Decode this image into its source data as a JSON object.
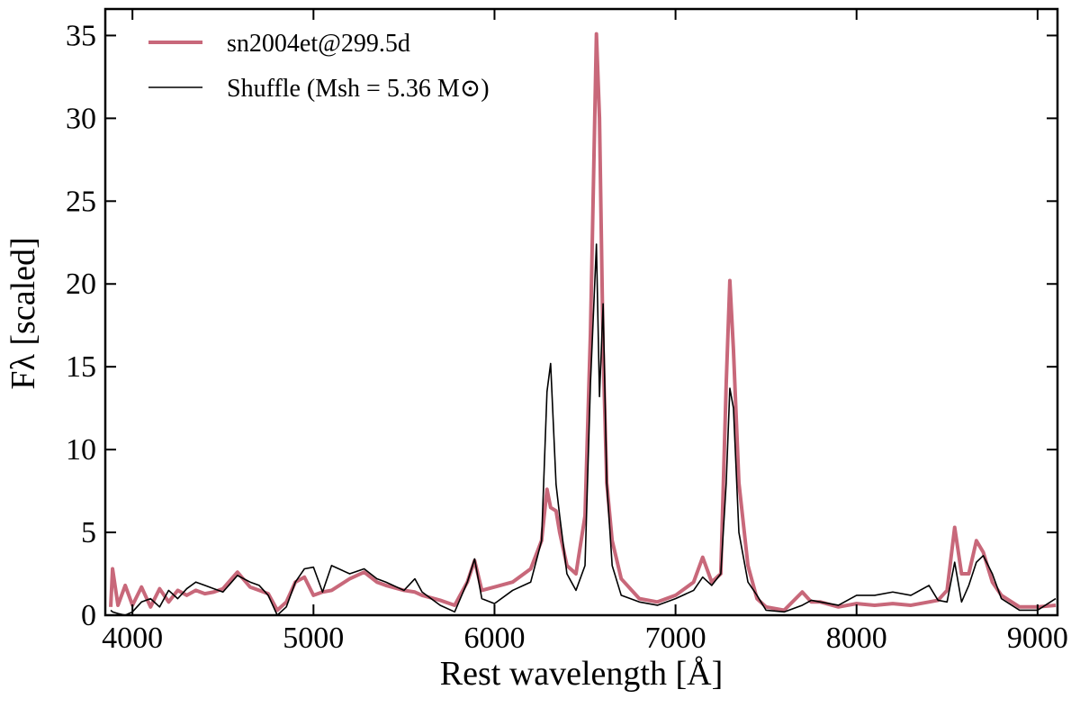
{
  "chart_data": {
    "type": "line",
    "xlabel": "Rest wavelength [Å]",
    "ylabel": "Fλ [scaled]",
    "xlim": [
      3850,
      9110
    ],
    "ylim": [
      0,
      36.6
    ],
    "xticks": [
      4000,
      5000,
      6000,
      7000,
      8000,
      9000
    ],
    "yticks": [
      0,
      5,
      10,
      15,
      20,
      25,
      30,
      35
    ],
    "legend": "upper left",
    "x": [
      3880,
      3890,
      3920,
      3960,
      4000,
      4050,
      4100,
      4150,
      4200,
      4250,
      4300,
      4350,
      4400,
      4450,
      4500,
      4580,
      4650,
      4700,
      4750,
      4800,
      4850,
      4900,
      4950,
      5000,
      5050,
      5100,
      5200,
      5280,
      5350,
      5400,
      5500,
      5560,
      5600,
      5700,
      5780,
      5850,
      5890,
      5930,
      6000,
      6100,
      6200,
      6260,
      6290,
      6310,
      6340,
      6360,
      6400,
      6450,
      6500,
      6530,
      6563,
      6580,
      6600,
      6620,
      6650,
      6700,
      6800,
      6900,
      7000,
      7100,
      7150,
      7200,
      7250,
      7280,
      7300,
      7320,
      7350,
      7400,
      7450,
      7500,
      7600,
      7700,
      7750,
      7800,
      7900,
      8000,
      8100,
      8200,
      8300,
      8400,
      8450,
      8500,
      8542,
      8580,
      8620,
      8662,
      8700,
      8750,
      8800,
      8900,
      9000,
      9100
    ],
    "series": [
      {
        "name": "sn2004et@299.5d",
        "color": "#c8687a",
        "width": 4,
        "values": [
          0.5,
          2.8,
          0.6,
          1.8,
          0.6,
          1.7,
          0.5,
          1.6,
          0.8,
          1.5,
          1.2,
          1.5,
          1.3,
          1.4,
          1.6,
          2.6,
          1.7,
          1.5,
          1.3,
          0.3,
          0.8,
          2.0,
          2.3,
          1.2,
          1.4,
          1.5,
          2.2,
          2.6,
          2.0,
          1.8,
          1.5,
          1.4,
          1.2,
          0.9,
          0.6,
          2.0,
          3.3,
          1.5,
          1.7,
          2.0,
          2.8,
          4.5,
          7.6,
          6.5,
          6.3,
          5.0,
          3.0,
          2.5,
          6,
          17,
          35.1,
          30,
          16,
          8,
          4.5,
          2.2,
          1.0,
          0.8,
          1.2,
          2.0,
          3.5,
          2.0,
          2.5,
          14,
          20.2,
          16,
          8,
          3,
          1.0,
          0.5,
          0.3,
          1.4,
          0.8,
          0.8,
          0.5,
          0.7,
          0.6,
          0.7,
          0.6,
          0.8,
          0.9,
          1.5,
          5.3,
          2.5,
          2.5,
          4.5,
          3.8,
          2.0,
          1.2,
          0.5,
          0.5,
          0.6
        ]
      },
      {
        "name": "Shuffle (Msh = 5.36 M⊙)",
        "color": "#000000",
        "width": 1.6,
        "values": [
          0.3,
          0.2,
          0.1,
          0,
          0.2,
          0.8,
          1.0,
          0.5,
          1.5,
          1.0,
          1.6,
          2.0,
          1.8,
          1.6,
          1.4,
          2.4,
          2.0,
          1.8,
          1.2,
          0.0,
          0.5,
          2.0,
          2.8,
          2.9,
          1.4,
          3.0,
          2.5,
          2.8,
          2.2,
          2.0,
          1.5,
          2.2,
          1.4,
          0.6,
          0.2,
          2.0,
          3.4,
          1.0,
          0.7,
          1.5,
          2.0,
          4.5,
          13.5,
          15.2,
          7.9,
          6.0,
          2.5,
          1.5,
          3,
          14,
          22.4,
          13.2,
          18.8,
          8,
          3,
          1.2,
          0.8,
          0.6,
          1.0,
          1.5,
          2.3,
          1.8,
          2.5,
          8,
          13.7,
          12.5,
          5,
          2.0,
          1.2,
          0.3,
          0.2,
          0.6,
          0.9,
          0.8,
          0.6,
          1.2,
          1.2,
          1.4,
          1.2,
          1.8,
          0.9,
          0.8,
          3.2,
          0.8,
          1.8,
          3.2,
          3.6,
          2.5,
          1.0,
          0.3,
          0.3,
          1.0
        ]
      }
    ]
  }
}
